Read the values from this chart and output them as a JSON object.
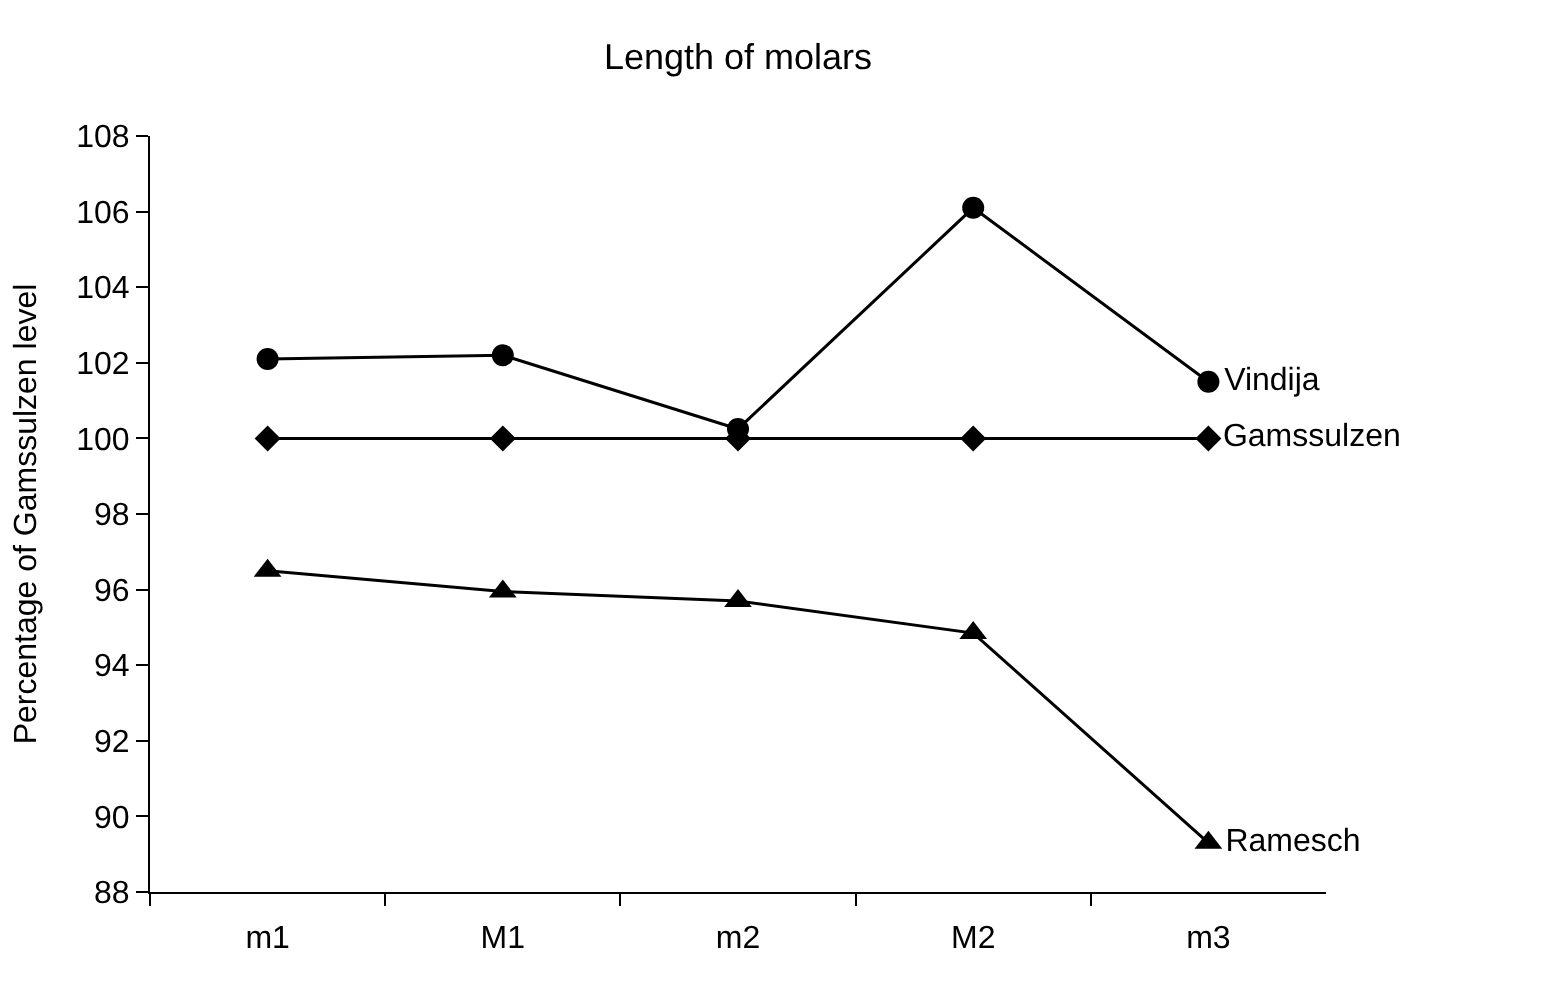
{
  "chart_data": {
    "type": "line",
    "title": "Length of molars",
    "ylabel": "Percentage of Gamssulzen level",
    "categories": [
      "m1",
      "M1",
      "m2",
      "M2",
      "m3"
    ],
    "series": [
      {
        "name": "Vindija",
        "color": "#000000",
        "marker": "circle",
        "values": [
          102.1,
          102.2,
          100.25,
          106.1,
          101.5
        ]
      },
      {
        "name": "Gamssulzen",
        "color": "#000000",
        "marker": "diamond",
        "values": [
          100,
          100,
          100,
          100,
          100
        ]
      },
      {
        "name": "Ramesch",
        "color": "#000000",
        "marker": "triangle",
        "values": [
          96.5,
          95.95,
          95.7,
          94.85,
          89.3
        ]
      }
    ],
    "ylim": [
      88,
      108
    ],
    "yticks": [
      88,
      90,
      92,
      94,
      96,
      98,
      100,
      102,
      104,
      106,
      108
    ],
    "legend": false,
    "line_style": "solid"
  }
}
